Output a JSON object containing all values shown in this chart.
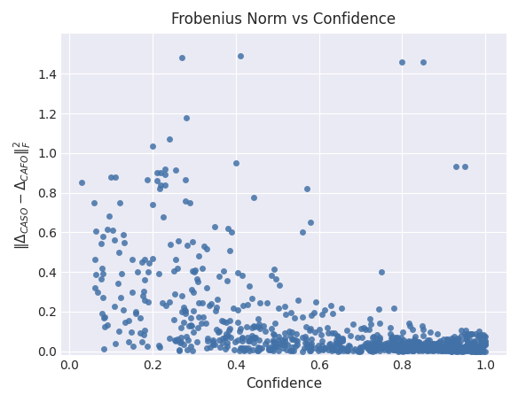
{
  "title": "Frobenius Norm vs Confidence",
  "xlabel": "Confidence",
  "ylabel": "$\\|\\Delta_{CASO} - \\Delta_{CAFO}\\|_F^2$",
  "xlim": [
    -0.02,
    1.05
  ],
  "ylim": [
    -0.02,
    1.6
  ],
  "xticks": [
    0.0,
    0.2,
    0.4,
    0.6,
    0.8,
    1.0
  ],
  "yticks": [
    0.0,
    0.2,
    0.4,
    0.6,
    0.8,
    1.0,
    1.2,
    1.4
  ],
  "dot_color": "#4271a7",
  "dot_size": 25,
  "background_color": "#eaeaf4",
  "grid_color": "#ffffff",
  "title_fontsize": 12,
  "label_fontsize": 11,
  "tick_fontsize": 10
}
